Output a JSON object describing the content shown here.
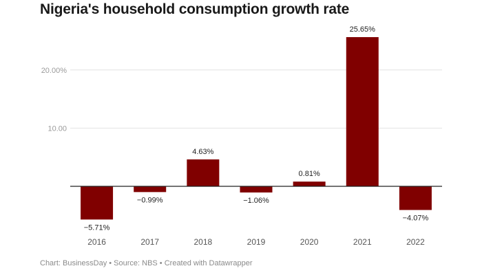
{
  "title": "Nigeria's household consumption growth rate",
  "footer": "Chart: BusinessDay • Source: NBS • Created with Datawrapper",
  "chart_data": {
    "type": "bar",
    "categories": [
      "2016",
      "2017",
      "2018",
      "2019",
      "2020",
      "2021",
      "2022"
    ],
    "values": [
      -5.71,
      -0.99,
      4.63,
      -1.06,
      0.81,
      25.65,
      -4.07
    ],
    "value_labels": [
      "−5.71%",
      "−0.99%",
      "4.63%",
      "−1.06%",
      "0.81%",
      "25.65%",
      "−4.07%"
    ],
    "y_ticks": [
      {
        "value": 20,
        "label": "20.00%"
      },
      {
        "value": 10,
        "label": "10.00"
      }
    ],
    "bar_color": "#800000",
    "ylim": [
      -7.5,
      26
    ],
    "grid": true
  }
}
